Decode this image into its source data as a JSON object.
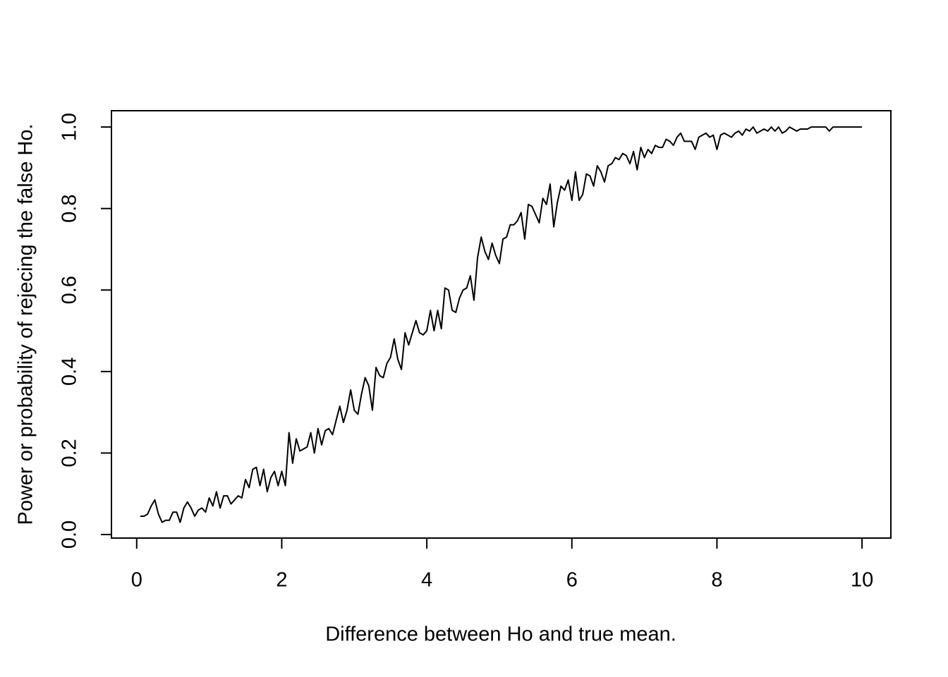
{
  "chart_data": {
    "type": "line",
    "xlabel": "Difference between Ho and true mean.",
    "ylabel": "Power or probability of rejecing the false Ho.",
    "color": "#000000",
    "xlim": [
      -0.348,
      10.398
    ],
    "ylim": [
      -0.0087,
      1.04
    ],
    "xticks": [
      0,
      2,
      4,
      6,
      8,
      10
    ],
    "yticks": [
      {
        "value": 0,
        "label": "0.0"
      },
      0.2,
      0.4,
      0.6,
      0.8,
      {
        "value": 1,
        "label": "1.0"
      }
    ],
    "x": [
      0.05,
      0.1,
      0.15,
      0.2,
      0.25,
      0.3,
      0.35,
      0.4,
      0.45,
      0.5,
      0.55,
      0.6,
      0.65,
      0.7,
      0.75,
      0.8,
      0.85,
      0.9,
      0.95,
      1,
      1.05,
      1.1,
      1.15,
      1.2,
      1.25,
      1.3,
      1.35,
      1.4,
      1.45,
      1.5,
      1.55,
      1.6,
      1.65,
      1.7,
      1.75,
      1.8,
      1.85,
      1.9,
      1.95,
      2,
      2.05,
      2.1,
      2.15,
      2.2,
      2.25,
      2.3,
      2.35,
      2.4,
      2.45,
      2.5,
      2.55,
      2.6,
      2.65,
      2.7,
      2.75,
      2.8,
      2.85,
      2.9,
      2.95,
      3,
      3.05,
      3.1,
      3.15,
      3.2,
      3.25,
      3.3,
      3.35,
      3.4,
      3.45,
      3.5,
      3.55,
      3.6,
      3.65,
      3.7,
      3.75,
      3.8,
      3.85,
      3.9,
      3.95,
      4,
      4.05,
      4.1,
      4.15,
      4.2,
      4.25,
      4.3,
      4.35,
      4.4,
      4.45,
      4.5,
      4.55,
      4.6,
      4.65,
      4.7,
      4.75,
      4.8,
      4.85,
      4.9,
      4.95,
      5,
      5.05,
      5.1,
      5.15,
      5.2,
      5.25,
      5.3,
      5.35,
      5.4,
      5.45,
      5.5,
      5.55,
      5.6,
      5.65,
      5.7,
      5.75,
      5.8,
      5.85,
      5.9,
      5.95,
      6,
      6.05,
      6.1,
      6.15,
      6.2,
      6.25,
      6.3,
      6.35,
      6.4,
      6.45,
      6.5,
      6.55,
      6.6,
      6.65,
      6.7,
      6.75,
      6.8,
      6.85,
      6.9,
      6.95,
      7,
      7.05,
      7.1,
      7.15,
      7.2,
      7.25,
      7.3,
      7.35,
      7.4,
      7.45,
      7.5,
      7.55,
      7.6,
      7.65,
      7.7,
      7.75,
      7.8,
      7.85,
      7.9,
      7.95,
      8,
      8.05,
      8.1,
      8.15,
      8.2,
      8.25,
      8.3,
      8.35,
      8.4,
      8.45,
      8.5,
      8.55,
      8.6,
      8.65,
      8.7,
      8.75,
      8.8,
      8.85,
      8.9,
      8.95,
      9,
      9.05,
      9.1,
      9.15,
      9.2,
      9.25,
      9.3,
      9.35,
      9.4,
      9.45,
      9.5,
      9.55,
      9.6,
      9.65,
      9.7,
      9.75,
      9.8,
      9.85,
      9.9,
      9.95,
      10
    ],
    "values": [
      0.045,
      0.045,
      0.05,
      0.07,
      0.085,
      0.05,
      0.03,
      0.035,
      0.035,
      0.055,
      0.055,
      0.03,
      0.065,
      0.08,
      0.065,
      0.045,
      0.06,
      0.065,
      0.055,
      0.09,
      0.07,
      0.105,
      0.065,
      0.095,
      0.095,
      0.075,
      0.085,
      0.095,
      0.09,
      0.135,
      0.115,
      0.16,
      0.165,
      0.12,
      0.16,
      0.105,
      0.14,
      0.155,
      0.12,
      0.155,
      0.12,
      0.25,
      0.175,
      0.235,
      0.205,
      0.21,
      0.215,
      0.25,
      0.2,
      0.26,
      0.22,
      0.255,
      0.26,
      0.245,
      0.28,
      0.315,
      0.275,
      0.305,
      0.355,
      0.305,
      0.295,
      0.345,
      0.385,
      0.365,
      0.305,
      0.41,
      0.39,
      0.385,
      0.42,
      0.435,
      0.48,
      0.43,
      0.405,
      0.495,
      0.465,
      0.495,
      0.525,
      0.495,
      0.49,
      0.5,
      0.55,
      0.5,
      0.55,
      0.505,
      0.605,
      0.6,
      0.55,
      0.545,
      0.58,
      0.6,
      0.605,
      0.635,
      0.575,
      0.68,
      0.73,
      0.695,
      0.675,
      0.715,
      0.685,
      0.665,
      0.725,
      0.73,
      0.76,
      0.76,
      0.77,
      0.79,
      0.725,
      0.81,
      0.805,
      0.785,
      0.765,
      0.825,
      0.81,
      0.86,
      0.755,
      0.815,
      0.855,
      0.845,
      0.87,
      0.82,
      0.89,
      0.82,
      0.835,
      0.885,
      0.88,
      0.855,
      0.905,
      0.89,
      0.865,
      0.905,
      0.91,
      0.925,
      0.92,
      0.935,
      0.93,
      0.91,
      0.94,
      0.895,
      0.95,
      0.925,
      0.945,
      0.935,
      0.955,
      0.95,
      0.95,
      0.97,
      0.965,
      0.955,
      0.975,
      0.985,
      0.965,
      0.965,
      0.965,
      0.945,
      0.975,
      0.98,
      0.985,
      0.975,
      0.98,
      0.945,
      0.98,
      0.985,
      0.98,
      0.975,
      0.985,
      0.99,
      0.98,
      0.995,
      0.99,
      1,
      0.985,
      0.99,
      0.995,
      0.99,
      1,
      0.99,
      1,
      0.985,
      0.99,
      1,
      0.995,
      0.99,
      0.995,
      0.995,
      0.995,
      1,
      1,
      1,
      1,
      1,
      0.99,
      1,
      1,
      1,
      1,
      1,
      1,
      1,
      1,
      1
    ]
  }
}
